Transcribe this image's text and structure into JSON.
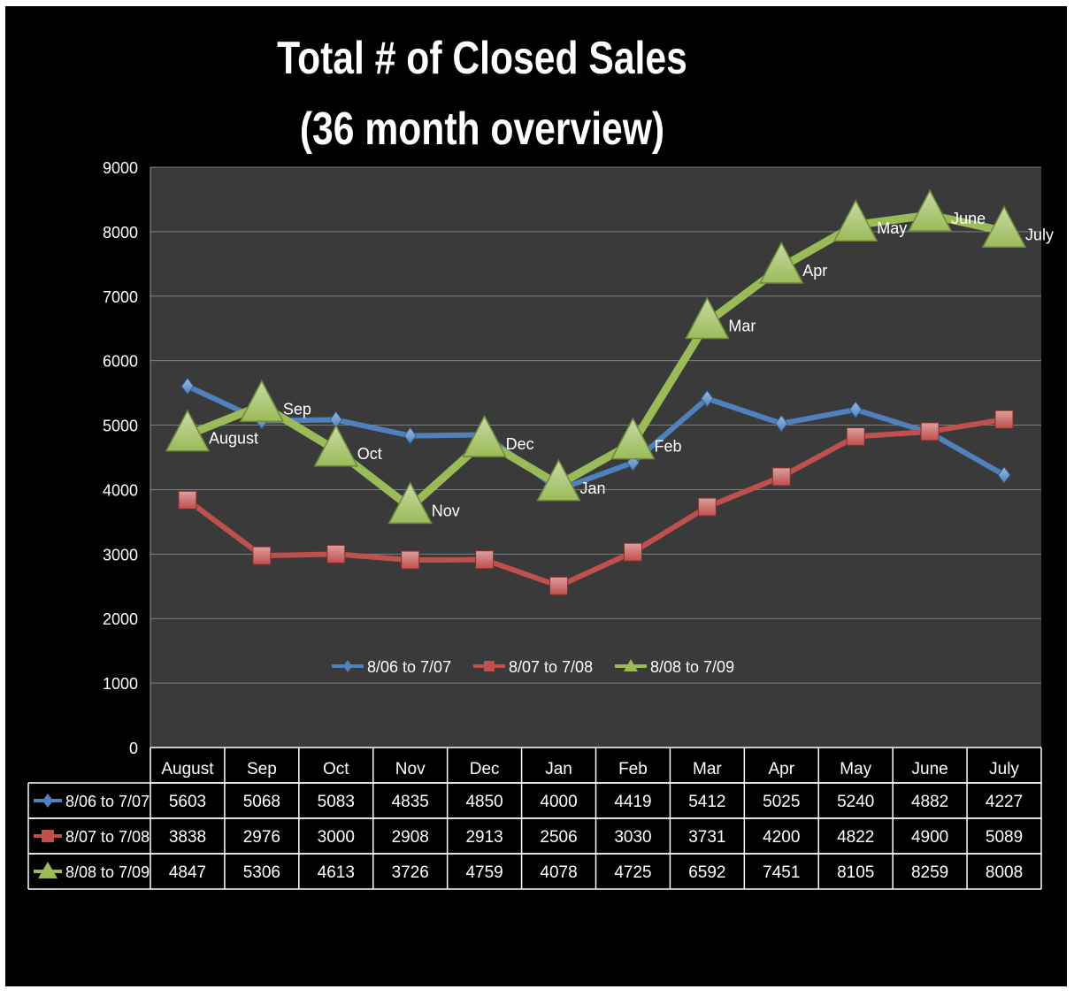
{
  "title_line1": "Total # of Closed Sales",
  "title_line2": "(36 month overview)",
  "chart_data": {
    "type": "line",
    "title": "Total # of Closed Sales (36 month overview)",
    "categories": [
      "August",
      "Sep",
      "Oct",
      "Nov",
      "Dec",
      "Jan",
      "Feb",
      "Mar",
      "Apr",
      "May",
      "June",
      "July"
    ],
    "ylim": [
      0,
      9000
    ],
    "yticks": [
      0,
      1000,
      2000,
      3000,
      4000,
      5000,
      6000,
      7000,
      8000,
      9000
    ],
    "grid": true,
    "legend_placement": "bottom-center",
    "data_table": true,
    "series": [
      {
        "name": "8/06 to 7/07",
        "color": "#4f81bd",
        "marker": "diamond",
        "values": [
          5603,
          5068,
          5083,
          4835,
          4850,
          4000,
          4419,
          5412,
          5025,
          5240,
          4882,
          4227
        ]
      },
      {
        "name": "8/07 to 7/08",
        "color": "#c0504d",
        "marker": "square",
        "values": [
          3838,
          2976,
          3000,
          2908,
          2913,
          2506,
          3030,
          3731,
          4200,
          4822,
          4900,
          5089
        ]
      },
      {
        "name": "8/08 to 7/09",
        "color": "#9bbb59",
        "marker": "triangle",
        "values": [
          4847,
          5306,
          4613,
          3726,
          4759,
          4078,
          4725,
          6592,
          7451,
          8105,
          8259,
          8008
        ]
      }
    ]
  }
}
